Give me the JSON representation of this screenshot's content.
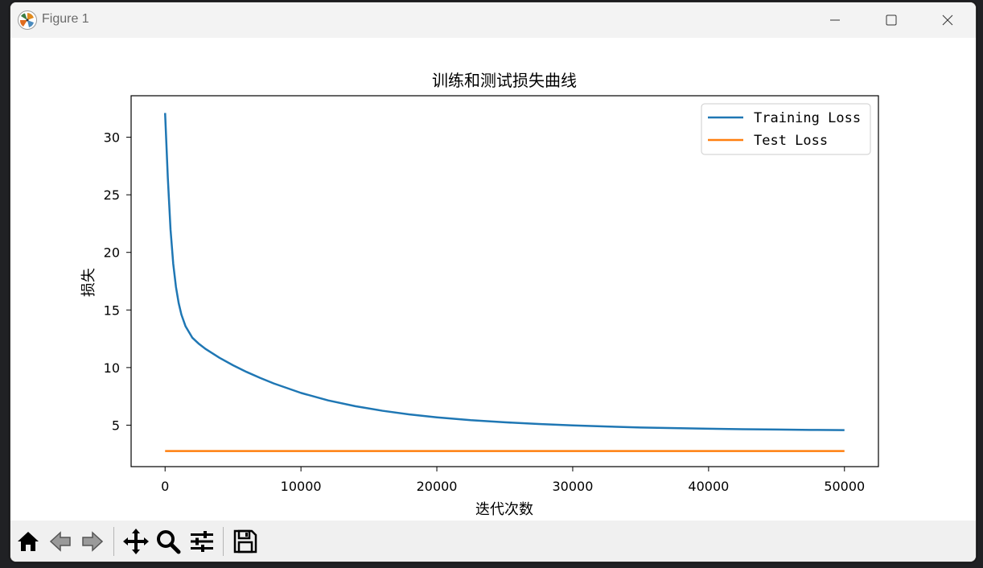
{
  "window": {
    "title": "Figure 1",
    "minimize_icon": "minimize-icon",
    "maximize_icon": "maximize-icon",
    "close_icon": "close-icon"
  },
  "toolbar": {
    "tools": [
      {
        "name": "home-icon"
      },
      {
        "name": "back-arrow-icon"
      },
      {
        "name": "forward-arrow-icon"
      },
      {
        "name": "pan-icon"
      },
      {
        "name": "zoom-icon"
      },
      {
        "name": "configure-subplots-icon"
      },
      {
        "name": "save-icon"
      }
    ]
  },
  "chart_data": {
    "type": "line",
    "title": "训练和测试损失曲线",
    "xlabel": "迭代次数",
    "ylabel": "损失",
    "xlim": [
      -2500,
      52500
    ],
    "ylim": [
      1.4,
      33.6
    ],
    "xticks": [
      0,
      10000,
      20000,
      30000,
      40000,
      50000
    ],
    "yticks": [
      5,
      10,
      15,
      20,
      25,
      30
    ],
    "legend_position": "top-right",
    "grid": false,
    "series": [
      {
        "name": "Training Loss",
        "color": "#1f77b4",
        "x": [
          0,
          200,
          400,
          600,
          800,
          1000,
          1200,
          1500,
          2000,
          2500,
          3000,
          4000,
          5000,
          6000,
          7000,
          8000,
          10000,
          12000,
          14000,
          16000,
          18000,
          20000,
          22500,
          25000,
          27500,
          30000,
          32500,
          35000,
          37500,
          40000,
          42500,
          45000,
          47500,
          50000
        ],
        "y": [
          32.1,
          26.5,
          22.0,
          19.0,
          17.0,
          15.6,
          14.6,
          13.6,
          12.6,
          12.05,
          11.6,
          10.85,
          10.2,
          9.62,
          9.1,
          8.62,
          7.8,
          7.15,
          6.65,
          6.25,
          5.93,
          5.68,
          5.43,
          5.25,
          5.1,
          4.98,
          4.88,
          4.8,
          4.74,
          4.69,
          4.65,
          4.62,
          4.59,
          4.57
        ]
      },
      {
        "name": "Test Loss",
        "color": "#ff7f0e",
        "x": [
          0,
          50000
        ],
        "y": [
          2.75,
          2.75
        ]
      }
    ]
  }
}
